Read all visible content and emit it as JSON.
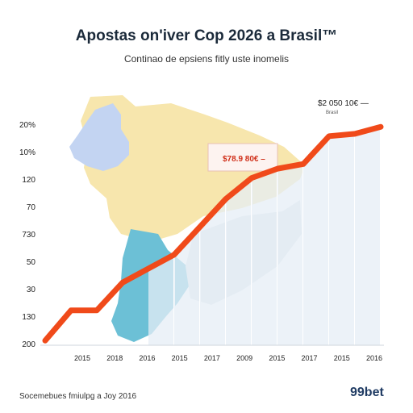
{
  "header": {
    "title": "Apostas on'iver Cop 2026 a Brasil™",
    "subtitle": "Continao de epsiens fitly uste inomelis"
  },
  "footer": {
    "source": "Socemebues fmiulpg a Joy 2016",
    "brand": "99bet"
  },
  "colors": {
    "line": "#f04a1a",
    "map_north": "#f7e6ad",
    "map_west": "#c3d4f2",
    "map_south": "#6cc0d6",
    "bars": "#e6eef5",
    "brand": "#1f3b63"
  },
  "chart_data": {
    "type": "line",
    "title": "Apostas on'iver Cop 2026 a Brasil™",
    "subtitle": "Continao de epsiens fitly uste inomelis",
    "y_tick_labels": [
      "20%",
      "10%",
      "120",
      "70",
      "730",
      "50",
      "30",
      "130",
      "200"
    ],
    "x_tick_labels": [
      "2015",
      "2018",
      "2016",
      "2015",
      "2017",
      "2009",
      "2015",
      "2017",
      "2015",
      "2016"
    ],
    "series": [
      {
        "values": [
          0.02,
          0.15,
          0.15,
          0.27,
          0.33,
          0.39,
          0.51,
          0.63,
          0.72,
          0.76,
          0.78,
          0.9,
          0.91,
          0.94
        ]
      }
    ],
    "annotations": [
      {
        "text": "$78.9 80€ –",
        "style": "boxed"
      },
      {
        "text": "$2 050 10€ —",
        "sub": "Brasil"
      }
    ],
    "background": "map of Brazil",
    "grid": false,
    "legend": "none"
  }
}
